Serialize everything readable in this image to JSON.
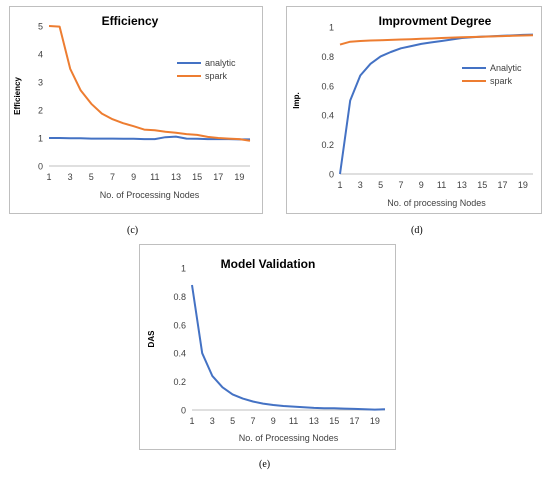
{
  "captions": [
    "(c)",
    "(d)",
    "(e)"
  ],
  "chart_data": [
    {
      "type": "line",
      "title": "Efficiency",
      "xlabel": "No. of Processing Nodes",
      "ylabel": "Efficiency",
      "x": [
        1,
        2,
        3,
        4,
        5,
        6,
        7,
        8,
        9,
        10,
        11,
        12,
        13,
        14,
        15,
        16,
        17,
        18,
        19,
        20
      ],
      "xticks": [
        1,
        3,
        5,
        7,
        9,
        11,
        13,
        15,
        17,
        19
      ],
      "ylim": [
        0,
        5
      ],
      "yticks": [
        0,
        1,
        2,
        3,
        4,
        5
      ],
      "ytick_labels": [
        "0",
        "1",
        "2",
        "3",
        "4",
        "5"
      ],
      "grid": false,
      "legend_position": "top-right",
      "series": [
        {
          "name": "analytic",
          "color": "#4472c4",
          "values": [
            1.0,
            1.0,
            0.99,
            0.99,
            0.98,
            0.98,
            0.98,
            0.97,
            0.97,
            0.96,
            0.96,
            1.03,
            1.05,
            0.98,
            0.97,
            0.96,
            0.96,
            0.96,
            0.95,
            0.95
          ]
        },
        {
          "name": "spark",
          "color": "#ed7d31",
          "values": [
            5.0,
            4.98,
            3.47,
            2.7,
            2.22,
            1.87,
            1.67,
            1.53,
            1.42,
            1.3,
            1.28,
            1.22,
            1.19,
            1.14,
            1.11,
            1.04,
            1.0,
            0.98,
            0.96,
            0.9
          ]
        }
      ]
    },
    {
      "type": "line",
      "title": "Improvment Degree",
      "xlabel": "No. of processing Nodes",
      "ylabel": "Imp.",
      "x": [
        1,
        2,
        3,
        4,
        5,
        6,
        7,
        8,
        9,
        10,
        11,
        12,
        13,
        14,
        15,
        16,
        17,
        18,
        19,
        20
      ],
      "xticks": [
        1,
        3,
        5,
        7,
        9,
        11,
        13,
        15,
        17,
        19
      ],
      "ylim": [
        0,
        1
      ],
      "yticks": [
        0,
        0.2,
        0.4,
        0.6,
        0.8,
        1
      ],
      "ytick_labels": [
        "0",
        "0.2",
        "0.4",
        "0.6",
        "0.8",
        "1"
      ],
      "grid": false,
      "legend_position": "right",
      "series": [
        {
          "name": "Analytic",
          "color": "#4472c4",
          "values": [
            0.0,
            0.5,
            0.67,
            0.75,
            0.8,
            0.83,
            0.855,
            0.87,
            0.885,
            0.895,
            0.905,
            0.915,
            0.925,
            0.93,
            0.935,
            0.937,
            0.94,
            0.943,
            0.946,
            0.948
          ]
        },
        {
          "name": "spark",
          "color": "#ed7d31",
          "values": [
            0.88,
            0.9,
            0.905,
            0.908,
            0.91,
            0.912,
            0.915,
            0.917,
            0.92,
            0.922,
            0.925,
            0.928,
            0.93,
            0.932,
            0.934,
            0.936,
            0.938,
            0.94,
            0.942,
            0.944
          ]
        }
      ]
    },
    {
      "type": "line",
      "title": "Model Validation",
      "xlabel": "No. of Processing Nodes",
      "ylabel": "DAS",
      "x": [
        1,
        2,
        3,
        4,
        5,
        6,
        7,
        8,
        9,
        10,
        11,
        12,
        13,
        14,
        15,
        16,
        17,
        18,
        19,
        20
      ],
      "xticks": [
        1,
        3,
        5,
        7,
        9,
        11,
        13,
        15,
        17,
        19
      ],
      "ylim": [
        0,
        1
      ],
      "yticks": [
        0,
        0.2,
        0.4,
        0.6,
        0.8,
        1
      ],
      "ytick_labels": [
        "0",
        "0.2",
        "0.4",
        "0.6",
        "0.8",
        "1"
      ],
      "grid": false,
      "legend_position": "none",
      "series": [
        {
          "color": "#4472c4",
          "values": [
            0.88,
            0.4,
            0.24,
            0.16,
            0.11,
            0.08,
            0.06,
            0.045,
            0.035,
            0.028,
            0.024,
            0.02,
            0.015,
            0.013,
            0.013,
            0.01,
            0.008,
            0.005,
            0.003,
            0.005
          ]
        }
      ]
    }
  ]
}
